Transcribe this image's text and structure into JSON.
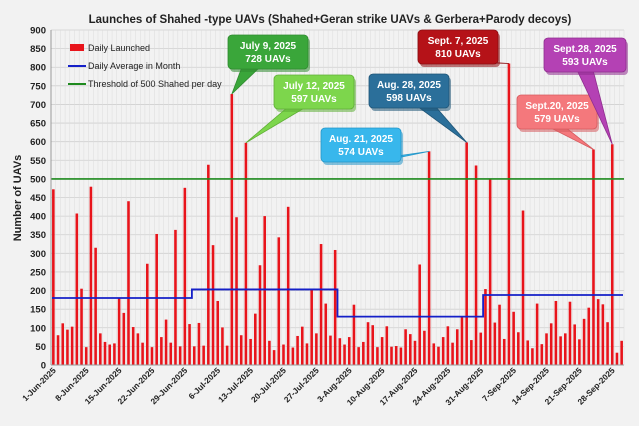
{
  "chart_data": {
    "type": "bar",
    "title": "Launches of Shahed -type  UAVs (Shahed+Geran strike UAVs & Gerbera+Parody decoys)",
    "xlabel": "",
    "ylabel": "Number of UAVs",
    "ylim": [
      0,
      900
    ],
    "yticks": [
      0,
      50,
      100,
      150,
      200,
      250,
      300,
      350,
      400,
      450,
      500,
      550,
      600,
      650,
      700,
      750,
      800,
      850,
      900
    ],
    "grid": true,
    "legend_position": "top-left",
    "x_tick_labels": [
      "1-Jun-2025",
      "8-Jun-2025",
      "15-Jun-2025",
      "22-Jun-2025",
      "29-Jun-2025",
      "6-Jul-2025",
      "13-Jul-2025",
      "20-Jul-2025",
      "27-Jul-2025",
      "3-Aug-2025",
      "10-Aug-2025",
      "17-Aug-2025",
      "24-Aug-2025",
      "31-Aug-2025",
      "7-Sep-2025",
      "14-Sep-2025",
      "21-Sep-2025",
      "28-Sep-2025"
    ],
    "series": [
      {
        "name": "Daily Launched",
        "kind": "bar",
        "color": "#e8141b",
        "values": [
          472,
          80,
          112,
          95,
          103,
          407,
          205,
          48,
          479,
          315,
          85,
          62,
          55,
          58,
          180,
          140,
          440,
          102,
          85,
          60,
          272,
          48,
          352,
          75,
          122,
          60,
          363,
          50,
          476,
          110,
          50,
          113,
          52,
          538,
          322,
          172,
          101,
          52,
          728,
          397,
          80,
          597,
          70,
          138,
          268,
          400,
          65,
          40,
          343,
          55,
          425,
          47,
          78,
          103,
          58,
          205,
          85,
          325,
          165,
          79,
          309,
          72,
          55,
          75,
          162,
          48,
          62,
          115,
          107,
          48,
          75,
          104,
          49,
          51,
          47,
          96,
          83,
          65,
          270,
          92,
          574,
          58,
          49,
          75,
          104,
          60,
          96,
          129,
          598,
          67,
          536,
          87,
          204,
          500,
          114,
          162,
          70,
          810,
          143,
          88,
          415,
          66,
          45,
          165,
          56,
          85,
          112,
          172,
          77,
          85,
          170,
          109,
          69,
          124,
          154,
          579,
          177,
          163,
          115,
          593,
          33,
          65
        ]
      },
      {
        "name": "Daily Average in Month",
        "kind": "step",
        "color": "#1520c8",
        "segments": [
          {
            "label": "June",
            "value": 180
          },
          {
            "label": "July",
            "value": 203
          },
          {
            "label": "August",
            "value": 130
          },
          {
            "label": "September",
            "value": 188
          }
        ]
      },
      {
        "name": "Threshold of 500 Shahed per day",
        "kind": "hline",
        "color": "#1e8a1e",
        "value": 500
      }
    ],
    "annotations": [
      {
        "label": "July 9, 2025",
        "value_text": "728 UAVs",
        "color": "#3aa63a",
        "dark": "#2f8a2f"
      },
      {
        "label": "July 12, 2025",
        "value_text": "597 UAVs",
        "color": "#7dd64c",
        "dark": "#5fae36"
      },
      {
        "label": "Aug. 21, 2025",
        "value_text": "574 UAVs",
        "color": "#38b7ec",
        "dark": "#2496c8"
      },
      {
        "label": "Aug. 28, 2025",
        "value_text": "598 UAVs",
        "color": "#2b6f9a",
        "dark": "#1f5577"
      },
      {
        "label": "Sept. 7, 2025",
        "value_text": "810 UAVs",
        "color": "#b51218",
        "dark": "#8c0c10"
      },
      {
        "label": "Sept.20, 2025",
        "value_text": "579 UAVs",
        "color": "#f4787c",
        "dark": "#d65b5f"
      },
      {
        "label": "Sept.28, 2025",
        "value_text": "593 UAVs",
        "color": "#b441b4",
        "dark": "#8f2e8f"
      }
    ]
  }
}
